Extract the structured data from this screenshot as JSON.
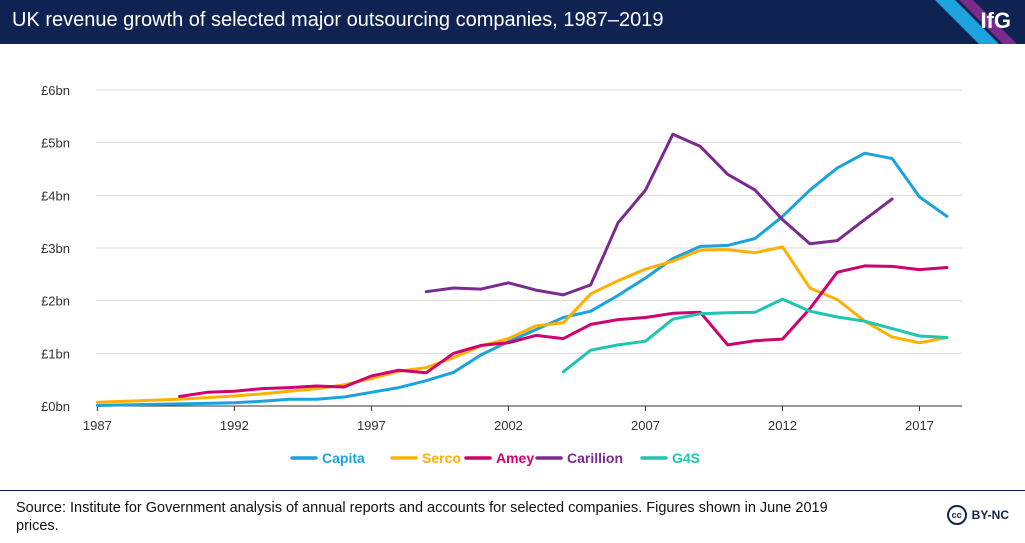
{
  "header": {
    "title": "UK revenue growth of selected major outsourcing companies, 1987–2019",
    "logo": "IfG"
  },
  "chart_data": {
    "type": "line",
    "title": "UK revenue growth of selected major outsourcing companies, 1987–2019",
    "xlabel": "",
    "ylabel": "",
    "xlim": [
      1987,
      2018
    ],
    "ylim": [
      0,
      6
    ],
    "x_ticks": [
      1987,
      1992,
      1997,
      2002,
      2007,
      2012,
      2017
    ],
    "x_tick_labels": [
      "1987",
      "1992",
      "1997",
      "2002",
      "2007",
      "2012",
      "2017"
    ],
    "y_ticks": [
      0,
      1,
      2,
      3,
      4,
      5,
      6
    ],
    "y_tick_labels": [
      "£0bn",
      "£1bn",
      "£2bn",
      "£3bn",
      "£4bn",
      "£5bn",
      "£6bn"
    ],
    "legend_position": "bottom",
    "series": [
      {
        "name": "Capita",
        "color": "#1aa3dc",
        "x": [
          1987,
          1988,
          1989,
          1990,
          1991,
          1992,
          1993,
          1994,
          1995,
          1996,
          1997,
          1998,
          1999,
          2000,
          2001,
          2002,
          2003,
          2004,
          2005,
          2006,
          2007,
          2008,
          2009,
          2010,
          2011,
          2012,
          2013,
          2014,
          2015,
          2016,
          2017,
          2018
        ],
        "values": [
          0.01,
          0.02,
          0.03,
          0.04,
          0.05,
          0.06,
          0.09,
          0.13,
          0.13,
          0.17,
          0.26,
          0.35,
          0.48,
          0.64,
          0.97,
          1.22,
          1.45,
          1.68,
          1.8,
          2.1,
          2.43,
          2.8,
          3.03,
          3.05,
          3.18,
          3.6,
          4.1,
          4.52,
          4.8,
          4.7,
          3.97,
          3.6
        ]
      },
      {
        "name": "Serco",
        "color": "#ffb000",
        "x": [
          1987,
          1988,
          1989,
          1990,
          1991,
          1992,
          1993,
          1994,
          1995,
          1996,
          1997,
          1998,
          1999,
          2000,
          2001,
          2002,
          2003,
          2004,
          2005,
          2006,
          2007,
          2008,
          2009,
          2010,
          2011,
          2012,
          2013,
          2014,
          2015,
          2016,
          2017,
          2018
        ],
        "values": [
          0.07,
          0.09,
          0.11,
          0.13,
          0.16,
          0.19,
          0.23,
          0.28,
          0.33,
          0.4,
          0.52,
          0.66,
          0.73,
          0.92,
          1.14,
          1.28,
          1.52,
          1.58,
          2.13,
          2.38,
          2.6,
          2.75,
          2.96,
          2.97,
          2.91,
          3.02,
          2.24,
          2.02,
          1.61,
          1.31,
          1.2,
          1.3
        ]
      },
      {
        "name": "Amey",
        "color": "#d0006f",
        "x": [
          1990,
          1991,
          1992,
          1993,
          1994,
          1995,
          1996,
          1997,
          1998,
          1999,
          2000,
          2001,
          2002,
          2003,
          2004,
          2005,
          2006,
          2007,
          2008,
          2009,
          2010,
          2011,
          2012,
          2013,
          2014,
          2015,
          2016,
          2017,
          2018
        ],
        "values": [
          0.18,
          0.26,
          0.28,
          0.33,
          0.35,
          0.38,
          0.36,
          0.57,
          0.68,
          0.63,
          1.0,
          1.15,
          1.2,
          1.34,
          1.28,
          1.55,
          1.64,
          1.68,
          1.76,
          1.78,
          1.16,
          1.24,
          1.27,
          1.85,
          2.54,
          2.66,
          2.65,
          2.59,
          2.63
        ]
      },
      {
        "name": "Carillion",
        "color": "#7b2a8e",
        "x": [
          1999,
          2000,
          2001,
          2002,
          2003,
          2004,
          2005,
          2006,
          2007,
          2008,
          2009,
          2010,
          2011,
          2012,
          2013,
          2014,
          2015,
          2016
        ],
        "values": [
          2.17,
          2.24,
          2.22,
          2.34,
          2.2,
          2.11,
          2.3,
          3.48,
          4.1,
          5.16,
          4.93,
          4.4,
          4.1,
          3.54,
          3.08,
          3.14,
          3.54,
          3.93
        ]
      },
      {
        "name": "G4S",
        "color": "#1ec5b0",
        "x": [
          2004,
          2005,
          2006,
          2007,
          2008,
          2009,
          2010,
          2011,
          2012,
          2013,
          2014,
          2015,
          2016,
          2017,
          2018
        ],
        "values": [
          0.65,
          1.06,
          1.16,
          1.23,
          1.65,
          1.75,
          1.77,
          1.78,
          2.03,
          1.8,
          1.69,
          1.61,
          1.47,
          1.33,
          1.3
        ]
      }
    ]
  },
  "footer": {
    "source": "Source: Institute for Government analysis of annual reports and accounts for selected companies. Figures shown in June 2019 prices.",
    "cc_symbol": "cc",
    "license": "BY-NC"
  }
}
